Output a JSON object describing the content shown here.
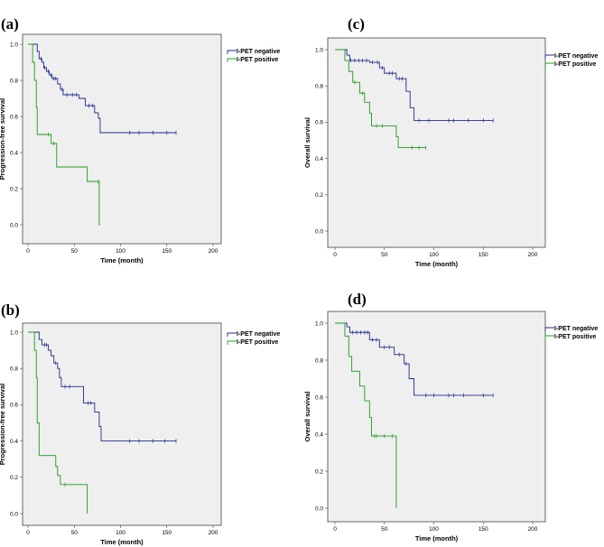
{
  "chart_data": [
    {
      "type": "line",
      "label": "(a)",
      "xlabel": "Time (month)",
      "ylabel": "Progression-free survival",
      "xlim": [
        0,
        200
      ],
      "ylim": [
        0,
        1
      ],
      "xticks": [
        "0",
        "50",
        "100",
        "150",
        "200"
      ],
      "yticks": [
        "0.0",
        "0.2",
        "0.4",
        "0.6",
        "0.8",
        "1.0"
      ],
      "legend": [
        "I-PET negative",
        "I-PET positive"
      ],
      "series": [
        {
          "name": "I-PET negative",
          "color": "#1f2a8c",
          "steps": [
            [
              0,
              1.0
            ],
            [
              10,
              0.96
            ],
            [
              12,
              0.92
            ],
            [
              15,
              0.9
            ],
            [
              17,
              0.87
            ],
            [
              20,
              0.85
            ],
            [
              23,
              0.83
            ],
            [
              26,
              0.81
            ],
            [
              32,
              0.78
            ],
            [
              35,
              0.75
            ],
            [
              38,
              0.72
            ],
            [
              55,
              0.7
            ],
            [
              62,
              0.66
            ],
            [
              72,
              0.62
            ],
            [
              76,
              0.59
            ],
            [
              78,
              0.51
            ],
            [
              160,
              0.51
            ]
          ],
          "censors": [
            14,
            18,
            22,
            25,
            28,
            30,
            37,
            42,
            48,
            52,
            66,
            70,
            110,
            120,
            135,
            150,
            160
          ]
        },
        {
          "name": "I-PET positive",
          "color": "#1e9c1e",
          "steps": [
            [
              0,
              1.0
            ],
            [
              5,
              0.9
            ],
            [
              7,
              0.8
            ],
            [
              9,
              0.65
            ],
            [
              10,
              0.5
            ],
            [
              25,
              0.45
            ],
            [
              31,
              0.32
            ],
            [
              64,
              0.24
            ],
            [
              77,
              0.0
            ],
            [
              78,
              0.0
            ]
          ],
          "censors": [
            22,
            28,
            76
          ]
        }
      ]
    },
    {
      "type": "line",
      "label": "(c)",
      "xlabel": "Time (month)",
      "ylabel": "Overall survival",
      "xlim": [
        0,
        200
      ],
      "ylim": [
        0,
        1
      ],
      "xticks": [
        "0",
        "50",
        "100",
        "150",
        "200"
      ],
      "yticks": [
        "0.0",
        "0.2",
        "0.4",
        "0.6",
        "0.8",
        "1.0"
      ],
      "legend": [
        "I-PET negative",
        "I-PET positive"
      ],
      "series": [
        {
          "name": "I-PET negative",
          "color": "#1f2a8c",
          "steps": [
            [
              0,
              1.0
            ],
            [
              12,
              0.97
            ],
            [
              15,
              0.94
            ],
            [
              35,
              0.93
            ],
            [
              45,
              0.9
            ],
            [
              50,
              0.87
            ],
            [
              62,
              0.84
            ],
            [
              72,
              0.77
            ],
            [
              76,
              0.68
            ],
            [
              80,
              0.61
            ],
            [
              160,
              0.61
            ]
          ],
          "censors": [
            16,
            20,
            24,
            28,
            32,
            38,
            43,
            48,
            55,
            58,
            65,
            68,
            85,
            95,
            115,
            120,
            135,
            150,
            160
          ]
        },
        {
          "name": "I-PET positive",
          "color": "#1e9c1e",
          "steps": [
            [
              0,
              1.0
            ],
            [
              10,
              0.94
            ],
            [
              14,
              0.88
            ],
            [
              18,
              0.82
            ],
            [
              25,
              0.76
            ],
            [
              30,
              0.71
            ],
            [
              35,
              0.65
            ],
            [
              37,
              0.58
            ],
            [
              62,
              0.52
            ],
            [
              64,
              0.46
            ],
            [
              92,
              0.46
            ]
          ],
          "censors": [
            20,
            28,
            42,
            48,
            78,
            85,
            92
          ]
        }
      ]
    },
    {
      "type": "line",
      "label": "(b)",
      "xlabel": "Time (month)",
      "ylabel": "Progression-free survival",
      "xlim": [
        0,
        200
      ],
      "ylim": [
        0,
        1
      ],
      "xticks": [
        "0",
        "50",
        "100",
        "150",
        "200"
      ],
      "yticks": [
        "0.0",
        "0.2",
        "0.4",
        "0.6",
        "0.8",
        "1.0"
      ],
      "legend": [
        "I-PET negative",
        "I-PET positive"
      ],
      "series": [
        {
          "name": "I-PET negative",
          "color": "#1f2a8c",
          "steps": [
            [
              0,
              1.0
            ],
            [
              12,
              0.96
            ],
            [
              15,
              0.93
            ],
            [
              22,
              0.9
            ],
            [
              25,
              0.87
            ],
            [
              28,
              0.83
            ],
            [
              32,
              0.8
            ],
            [
              34,
              0.75
            ],
            [
              36,
              0.7
            ],
            [
              60,
              0.61
            ],
            [
              72,
              0.56
            ],
            [
              77,
              0.48
            ],
            [
              79,
              0.4
            ],
            [
              160,
              0.4
            ]
          ],
          "censors": [
            18,
            20,
            30,
            40,
            45,
            65,
            68,
            110,
            120,
            135,
            148,
            160
          ]
        },
        {
          "name": "I-PET positive",
          "color": "#1e9c1e",
          "steps": [
            [
              0,
              1.0
            ],
            [
              7,
              0.9
            ],
            [
              9,
              0.75
            ],
            [
              10,
              0.5
            ],
            [
              12,
              0.32
            ],
            [
              30,
              0.26
            ],
            [
              32,
              0.21
            ],
            [
              35,
              0.16
            ],
            [
              64,
              0.0
            ]
          ],
          "censors": [
            40
          ]
        }
      ]
    },
    {
      "type": "line",
      "label": "(d)",
      "xlabel": "Time (month)",
      "ylabel": "Overall survival",
      "xlim": [
        0,
        200
      ],
      "ylim": [
        0,
        1
      ],
      "xticks": [
        "0",
        "50",
        "100",
        "150",
        "200"
      ],
      "yticks": [
        "0.0",
        "0.2",
        "0.4",
        "0.6",
        "0.8",
        "1.0"
      ],
      "legend": [
        "I-PET negative",
        "I-PET positive"
      ],
      "series": [
        {
          "name": "I-PET negative",
          "color": "#1f2a8c",
          "steps": [
            [
              0,
              1.0
            ],
            [
              12,
              0.98
            ],
            [
              15,
              0.95
            ],
            [
              35,
              0.91
            ],
            [
              45,
              0.87
            ],
            [
              60,
              0.83
            ],
            [
              70,
              0.78
            ],
            [
              75,
              0.7
            ],
            [
              80,
              0.61
            ],
            [
              160,
              0.61
            ]
          ],
          "censors": [
            18,
            22,
            26,
            30,
            33,
            38,
            42,
            50,
            55,
            65,
            72,
            92,
            100,
            115,
            120,
            130,
            150,
            160
          ]
        },
        {
          "name": "I-PET positive",
          "color": "#1e9c1e",
          "steps": [
            [
              0,
              1.0
            ],
            [
              10,
              0.93
            ],
            [
              14,
              0.82
            ],
            [
              17,
              0.74
            ],
            [
              25,
              0.66
            ],
            [
              30,
              0.58
            ],
            [
              35,
              0.49
            ],
            [
              37,
              0.39
            ],
            [
              62,
              0.0
            ]
          ],
          "censors": [
            40,
            42,
            50,
            58
          ]
        }
      ]
    }
  ]
}
